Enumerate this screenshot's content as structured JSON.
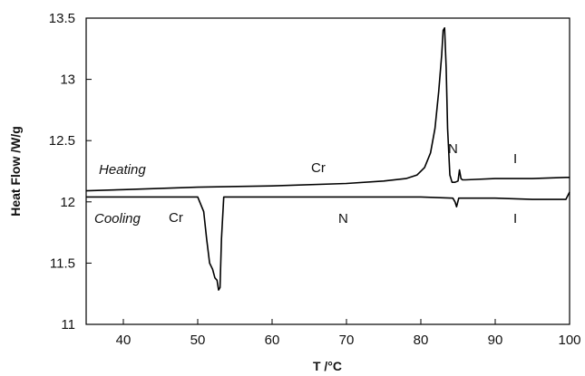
{
  "chart_data": {
    "type": "line",
    "xlabel": "T /°C",
    "ylabel": "Heat Flow /W/g",
    "xlim": [
      35,
      100
    ],
    "ylim": [
      11,
      13.5
    ],
    "xticks": [
      40,
      50,
      60,
      70,
      80,
      90,
      100
    ],
    "yticks": [
      11,
      11.5,
      12,
      12.5,
      13,
      13.5
    ],
    "x_tick_labels": [
      "40",
      "50",
      "60",
      "70",
      "80",
      "90",
      "100"
    ],
    "y_tick_labels": [
      "11",
      "11.5",
      "12",
      "12.5",
      "13",
      "13.5"
    ],
    "grid": false,
    "series": [
      {
        "name": "Heating",
        "color": "#000000",
        "x": [
          35,
          40,
          50,
          60,
          70,
          75,
          78,
          79.5,
          80.5,
          81.3,
          81.9,
          82.4,
          82.8,
          83.0,
          83.2,
          83.4,
          83.6,
          83.9,
          84.2,
          84.6,
          85.0,
          85.2,
          85.4,
          85.6,
          86.0,
          90,
          95,
          99.5,
          100
        ],
        "y": [
          12.09,
          12.1,
          12.12,
          12.13,
          12.15,
          12.17,
          12.19,
          12.22,
          12.28,
          12.4,
          12.6,
          12.9,
          13.2,
          13.4,
          13.42,
          13.1,
          12.6,
          12.22,
          12.16,
          12.16,
          12.17,
          12.26,
          12.19,
          12.18,
          12.18,
          12.19,
          12.19,
          12.2,
          12.2
        ]
      },
      {
        "name": "Cooling",
        "color": "#000000",
        "x": [
          35,
          40,
          45,
          50,
          50.8,
          51.2,
          51.6,
          52.0,
          52.3,
          52.6,
          52.8,
          53.0,
          53.2,
          53.5,
          54.0,
          60,
          70,
          80,
          84.3,
          84.6,
          84.8,
          85.1,
          85.5,
          90,
          95,
          99.5,
          100
        ],
        "y": [
          12.04,
          12.04,
          12.04,
          12.04,
          11.92,
          11.7,
          11.5,
          11.45,
          11.38,
          11.36,
          11.28,
          11.3,
          11.7,
          12.04,
          12.04,
          12.04,
          12.04,
          12.04,
          12.03,
          12.0,
          11.96,
          12.03,
          12.03,
          12.03,
          12.02,
          12.02,
          12.08
        ]
      }
    ],
    "annotations": {
      "heating_label": "Heating",
      "cooling_label": "Cooling",
      "heating_cr": "Cr",
      "heating_n": "N",
      "heating_i": "I",
      "cooling_cr": "Cr",
      "cooling_n": "N",
      "cooling_i": "I"
    }
  }
}
